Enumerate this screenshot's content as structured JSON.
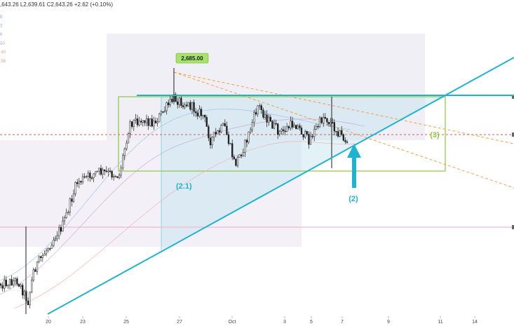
{
  "header": {
    "ohlc_text": ",643.26  L2,639.61  C2,643.26  +2.62 (+0.10%)"
  },
  "indicator_values": [
    {
      "text": "0",
      "color": "#7a9fd6"
    },
    {
      "text": "7",
      "color": "#7a9fd6"
    },
    {
      "text": "0",
      "color": "#9c8fd0"
    },
    {
      "text": "50",
      "color": "#c79fd4"
    },
    {
      "text": ".40",
      "color": "#e89a9a"
    },
    {
      "text": ".56",
      "color": "#e89a9a"
    }
  ],
  "chart_data": {
    "type": "candlestick",
    "x_tick_labels": [
      "20",
      "23",
      "25",
      "27",
      "Oct",
      "3",
      "5",
      "7",
      "9",
      "11",
      "14"
    ],
    "price_callout": "2,685.00",
    "annotations": [
      {
        "label": "(2.1)",
        "color": "#1fb3d1"
      },
      {
        "label": "(2)",
        "color": "#1fb3d1"
      },
      {
        "label": "(3)",
        "color": "#8cc63f"
      }
    ],
    "colors": {
      "candles": "#1e1e1e",
      "trendline": "#1fb3d1",
      "box": "#8cc63f",
      "ma_dashed": "#f5a040",
      "pink_line": "#f5b8c8",
      "red_dotted": "#e05a5a",
      "zone": "#d8d0e6"
    },
    "series": [
      {
        "name": "",
        "type": "ohlc",
        "values": []
      }
    ]
  }
}
